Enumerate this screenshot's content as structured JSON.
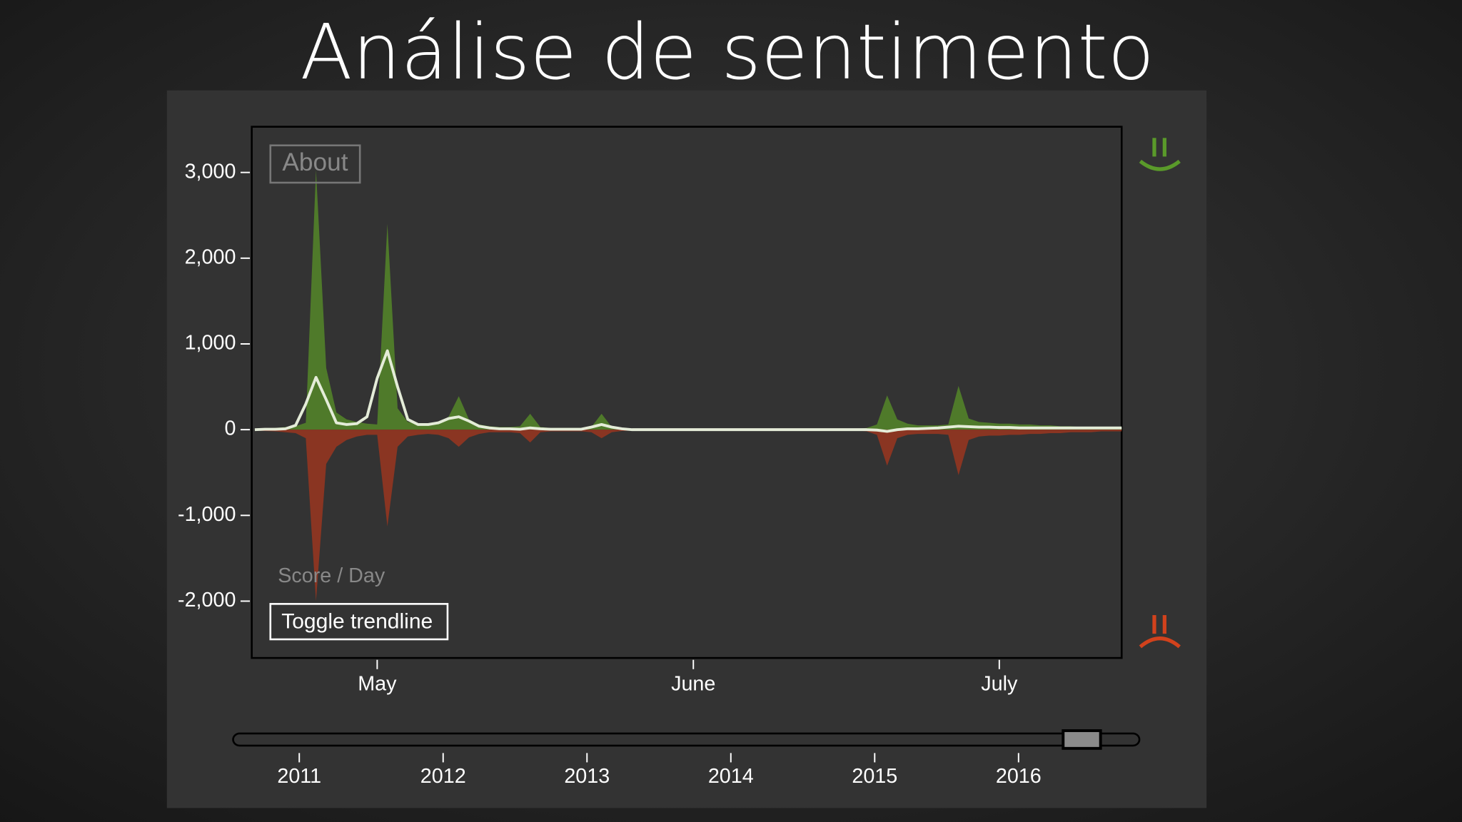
{
  "slide_title": "Análise de sentimento",
  "chart_data": {
    "type": "area",
    "about_button": "About",
    "y_label": "Score / Day",
    "toggle_button": "Toggle trendline",
    "xlim": [
      -0.3,
      85
    ],
    "xticks": [
      {
        "value": 12,
        "label": "May"
      },
      {
        "value": 43,
        "label": "June"
      },
      {
        "value": 73,
        "label": "July"
      }
    ],
    "ylim": [
      -2663,
      3533
    ],
    "yticks": [
      {
        "value": -2000,
        "label": "-2,000"
      },
      {
        "value": -1000,
        "label": "-1,000"
      },
      0,
      {
        "value": 1000,
        "label": "1,000"
      },
      {
        "value": 2000,
        "label": "2,000"
      },
      {
        "value": 3000,
        "label": "3,000"
      }
    ],
    "series": [
      {
        "color": "#4f7a2a",
        "values": [
          10,
          15,
          20,
          30,
          40,
          80,
          3030,
          720,
          200,
          120,
          90,
          70,
          60,
          2400,
          250,
          90,
          70,
          60,
          80,
          150,
          390,
          120,
          60,
          40,
          30,
          30,
          40,
          185,
          30,
          20,
          20,
          20,
          20,
          30,
          185,
          30,
          15,
          10,
          10,
          10,
          10,
          10,
          10,
          10,
          10,
          10,
          10,
          10,
          10,
          10,
          10,
          10,
          10,
          10,
          10,
          10,
          10,
          10,
          10,
          10,
          20,
          60,
          400,
          120,
          70,
          50,
          50,
          50,
          60,
          510,
          130,
          90,
          80,
          70,
          70,
          60,
          60,
          50,
          50,
          40,
          40,
          30,
          30,
          30,
          20,
          20
        ]
      },
      {
        "color": "#8a3522",
        "values": [
          -10,
          -15,
          -20,
          -30,
          -40,
          -100,
          -2000,
          -400,
          -200,
          -120,
          -80,
          -60,
          -60,
          -1130,
          -200,
          -80,
          -60,
          -50,
          -60,
          -100,
          -200,
          -90,
          -50,
          -30,
          -30,
          -30,
          -40,
          -150,
          -30,
          -20,
          -20,
          -20,
          -20,
          -30,
          -100,
          -30,
          -15,
          -10,
          -10,
          -10,
          -10,
          -10,
          -10,
          -10,
          -10,
          -10,
          -10,
          -10,
          -10,
          -10,
          -10,
          -10,
          -10,
          -10,
          -10,
          -10,
          -10,
          -10,
          -10,
          -10,
          -20,
          -60,
          -420,
          -100,
          -60,
          -50,
          -50,
          -50,
          -60,
          -530,
          -120,
          -80,
          -70,
          -70,
          -60,
          -60,
          -50,
          -50,
          -40,
          -40,
          -30,
          -30,
          -30,
          -20,
          -20,
          -20
        ]
      },
      {
        "type": "line",
        "color": "#e4ecd8",
        "values": [
          0,
          5,
          5,
          10,
          50,
          300,
          610,
          350,
          80,
          60,
          70,
          150,
          600,
          920,
          500,
          120,
          60,
          60,
          80,
          130,
          150,
          100,
          40,
          20,
          10,
          10,
          5,
          20,
          10,
          5,
          5,
          5,
          5,
          30,
          60,
          30,
          10,
          0,
          0,
          0,
          0,
          0,
          0,
          0,
          0,
          0,
          0,
          0,
          0,
          0,
          0,
          0,
          0,
          0,
          0,
          0,
          0,
          0,
          0,
          0,
          0,
          -5,
          -20,
          0,
          10,
          10,
          15,
          20,
          30,
          40,
          35,
          30,
          30,
          25,
          25,
          20,
          20,
          20,
          20,
          20,
          20,
          20,
          20,
          20,
          20,
          20
        ]
      }
    ],
    "brush": {
      "xlim": [
        2010.54,
        2016.84
      ],
      "xticks": [
        2011,
        2012,
        2013,
        2014,
        2015,
        2016
      ],
      "selection": [
        2016.31,
        2016.57
      ]
    }
  }
}
